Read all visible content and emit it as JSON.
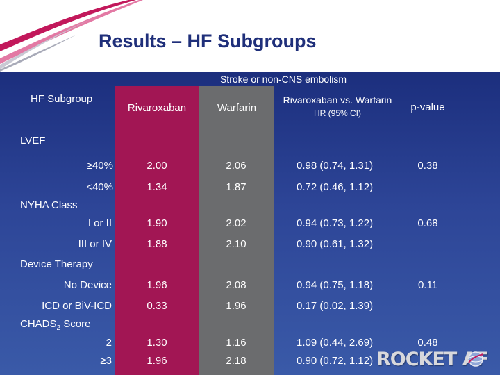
{
  "title": "Results – HF Subgroups",
  "table": {
    "spanner": "Stroke or non-CNS embolism",
    "headers": {
      "subgroup": "HF Subgroup",
      "rivaroxaban": "Rivaroxaban",
      "warfarin": "Warfarin",
      "hr_line1": "Rivaroxaban vs. Warfarin",
      "hr_line2": "HR (95%  CI)",
      "pvalue": "p-value"
    },
    "groups": [
      {
        "label": "LVEF",
        "label_sub": "",
        "rows": [
          {
            "label": "≥40%",
            "riv": "2.00",
            "warf": "2.06",
            "hr": "0.98 (0.74, 1.31)",
            "p": "0.38"
          },
          {
            "label": "<40%",
            "riv": "1.34",
            "warf": "1.87",
            "hr": "0.72 (0.46, 1.12)",
            "p": ""
          }
        ]
      },
      {
        "label": "NYHA Class",
        "label_sub": "",
        "rows": [
          {
            "label": "I or II",
            "riv": "1.90",
            "warf": "2.02",
            "hr": "0.94 (0.73, 1.22)",
            "p": "0.68"
          },
          {
            "label": "III or IV",
            "riv": "1.88",
            "warf": "2.10",
            "hr": "0.90 (0.61, 1.32)",
            "p": ""
          }
        ]
      },
      {
        "label": "Device Therapy",
        "label_sub": "",
        "rows": [
          {
            "label": "No Device",
            "riv": "1.96",
            "warf": "2.08",
            "hr": "0.94 (0.75, 1.18)",
            "p": "0.11"
          },
          {
            "label": "ICD or BiV-ICD",
            "riv": "0.33",
            "warf": "1.96",
            "hr": "0.17 (0.02, 1.39)",
            "p": ""
          }
        ]
      },
      {
        "label": "CHADS",
        "label_sub": "2",
        "label_suffix": " Score",
        "rows": [
          {
            "label": "2",
            "riv": "1.30",
            "warf": "1.16",
            "hr": "1.09 (0.44, 2.69)",
            "p": "0.48"
          },
          {
            "label": "≥3",
            "riv": "1.96",
            "warf": "2.18",
            "hr": "0.90 (0.72, 1.12)",
            "p": ""
          }
        ]
      }
    ]
  },
  "logo": {
    "text": "ROCKET AF",
    "icon": "globe-icon"
  },
  "colors": {
    "rivaroxaban_column": "#a21654",
    "warfarin_column": "#6b6c6e",
    "title": "#1f2f7a",
    "swoosh": "#c2185b"
  }
}
